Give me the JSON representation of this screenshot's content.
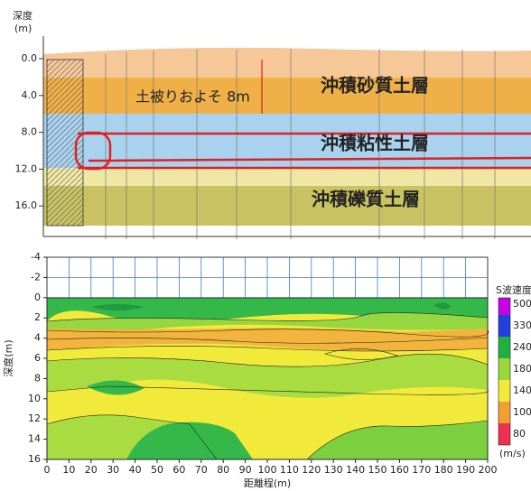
{
  "section": {
    "axis_label_1": "深度",
    "axis_label_2": "(m)",
    "yticks": [
      {
        "value": 0,
        "label": "0.0"
      },
      {
        "value": 4,
        "label": "4.0"
      },
      {
        "value": 8,
        "label": "8.0"
      },
      {
        "value": 12,
        "label": "12.0"
      },
      {
        "value": 16,
        "label": "16.0"
      }
    ],
    "cover_note": "土被りおよそ 8m",
    "layers": [
      "沖積砂質土層",
      "沖積粘性土層",
      "沖積礫質土層"
    ]
  },
  "chart_data": {
    "type": "contour",
    "x_label": "距離程(m)",
    "y_label": "深度(m)",
    "xlim": [
      0,
      200
    ],
    "ylim": [
      -4,
      16
    ],
    "y_inverted": true,
    "xticks": [
      0,
      10,
      20,
      30,
      40,
      50,
      60,
      70,
      80,
      90,
      100,
      110,
      120,
      130,
      140,
      150,
      160,
      170,
      180,
      190,
      200
    ],
    "yticks": [
      -4,
      -2,
      0,
      2,
      4,
      6,
      8,
      10,
      12,
      14,
      16
    ],
    "grid": true,
    "grid_color": "#3c78d8",
    "colorbar": {
      "title": "S波速度",
      "unit": "(m/s)",
      "levels": [
        {
          "value": 500,
          "color": "#c800e6"
        },
        {
          "value": 330,
          "color": "#2040e0"
        },
        {
          "value": 240,
          "color": "#20b040"
        },
        {
          "value": 180,
          "color": "#9ad83a"
        },
        {
          "value": 140,
          "color": "#f2ea3a"
        },
        {
          "value": 100,
          "color": "#f2a030"
        },
        {
          "value": 80,
          "color": "#f03050"
        }
      ]
    }
  }
}
